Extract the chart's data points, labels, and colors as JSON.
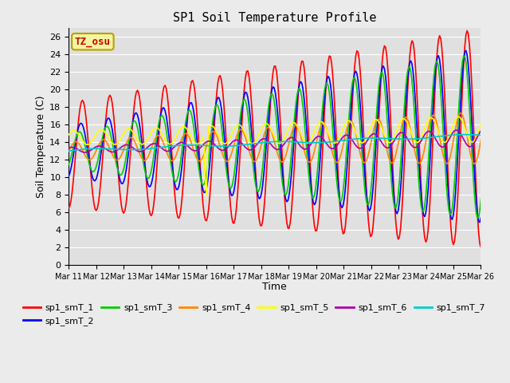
{
  "title": "SP1 Soil Temperature Profile",
  "xlabel": "Time",
  "ylabel": "Soil Temperature (C)",
  "ylim": [
    0,
    27
  ],
  "yticks": [
    0,
    2,
    4,
    6,
    8,
    10,
    12,
    14,
    16,
    18,
    20,
    22,
    24,
    26
  ],
  "start_day": 11,
  "end_day": 26,
  "n_days": 15,
  "xtick_labels": [
    "Mar 11",
    "Mar 12",
    "Mar 13",
    "Mar 14",
    "Mar 15",
    "Mar 16",
    "Mar 17",
    "Mar 18",
    "Mar 19",
    "Mar 20",
    "Mar 21",
    "Mar 22",
    "Mar 23",
    "Mar 24",
    "Mar 25",
    "Mar 26"
  ],
  "series_colors": [
    "red",
    "#0000ff",
    "#00cc00",
    "#ff8800",
    "#ffff00",
    "#aa00aa",
    "#00cccc"
  ],
  "series_labels": [
    "sp1_smT_1",
    "sp1_smT_2",
    "sp1_smT_3",
    "sp1_smT_4",
    "sp1_smT_5",
    "sp1_smT_6",
    "sp1_smT_7"
  ],
  "tz_label": "TZ_osu",
  "fig_bg": "#ebebeb",
  "ax_bg": "#e0e0e0",
  "title_fontsize": 11,
  "axis_label_fontsize": 9,
  "tick_fontsize": 7
}
